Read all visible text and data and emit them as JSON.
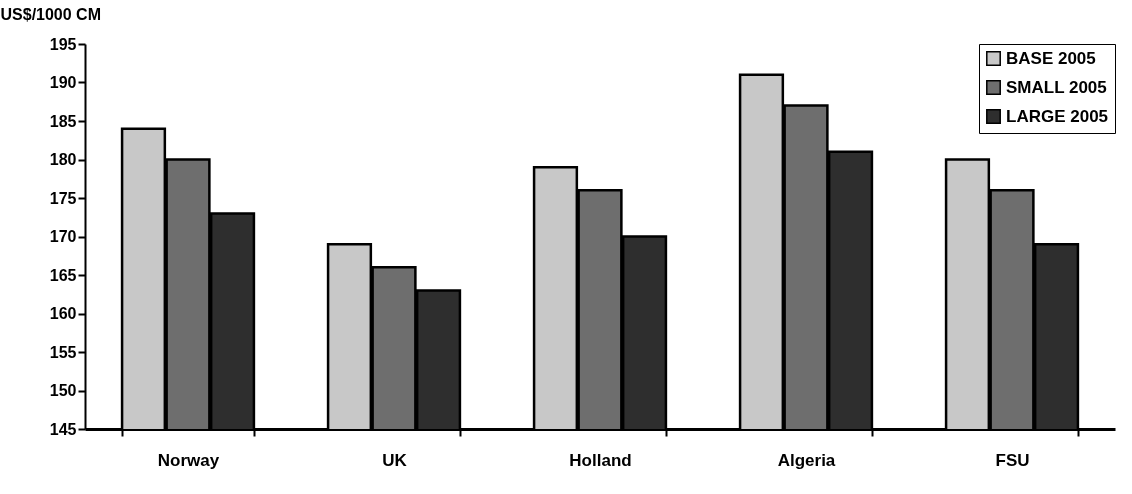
{
  "chart_data": {
    "type": "bar",
    "ylabel": "US$/1000 CM",
    "categories": [
      "Norway",
      "UK",
      "Holland",
      "Algeria",
      "FSU"
    ],
    "series": [
      {
        "name": "BASE 2005",
        "color": "#c8c8c8",
        "values": [
          184,
          169,
          179,
          191,
          180
        ]
      },
      {
        "name": "SMALL 2005",
        "color": "#6e6e6e",
        "values": [
          180,
          166,
          176,
          187,
          176
        ]
      },
      {
        "name": "LARGE 2005",
        "color": "#2e2e2e",
        "values": [
          173,
          163,
          170,
          181,
          169
        ]
      }
    ],
    "ylim": [
      145,
      195
    ],
    "yticks": [
      145,
      150,
      155,
      160,
      165,
      170,
      175,
      180,
      185,
      190,
      195
    ],
    "grid": false,
    "legend": "top right"
  }
}
